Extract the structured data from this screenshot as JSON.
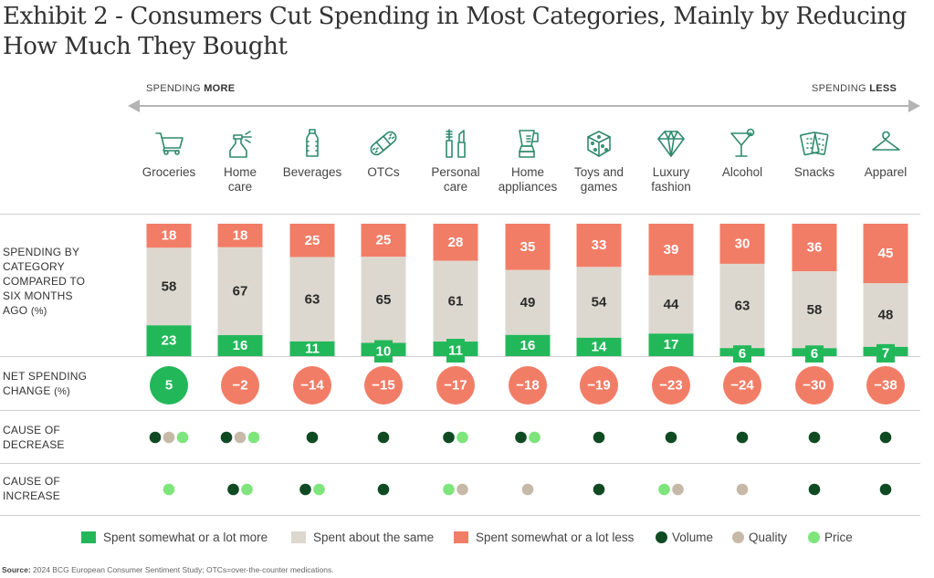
{
  "title": "Exhibit 2 - Consumers Cut Spending in Most Categories, Mainly by Reducing How Much They Bought",
  "direction": {
    "left_prefix": "SPENDING ",
    "left_bold": "MORE",
    "right_prefix": "SPENDING ",
    "right_bold": "LESS"
  },
  "row_labels": {
    "spending": [
      "SPENDING BY",
      "CATEGORY",
      "COMPARED TO",
      "SIX MONTHS",
      "AGO"
    ],
    "spending_unit": "(%)",
    "net": [
      "NET SPENDING",
      "CHANGE"
    ],
    "net_unit": "(%)",
    "decrease": [
      "CAUSE OF",
      "DECREASE"
    ],
    "increase": [
      "CAUSE OF",
      "INCREASE"
    ]
  },
  "colors": {
    "more": "#22b85a",
    "same": "#ddd8cf",
    "less": "#f27d67",
    "volume": "#0f4a22",
    "quality": "#c7b9a8",
    "price": "#7de57b",
    "icon": "#2f8a6a"
  },
  "categories": [
    {
      "label": [
        "Groceries"
      ],
      "icon": "shopping-cart-icon"
    },
    {
      "label": [
        "Home",
        "care"
      ],
      "icon": "spray-bottle-icon"
    },
    {
      "label": [
        "Beverages"
      ],
      "icon": "water-bottle-icon"
    },
    {
      "label": [
        "OTCs"
      ],
      "icon": "bandage-icon"
    },
    {
      "label": [
        "Personal",
        "care"
      ],
      "icon": "mascara-lipstick-icon"
    },
    {
      "label": [
        "Home",
        "appliances"
      ],
      "icon": "blender-icon"
    },
    {
      "label": [
        "Toys and",
        "games"
      ],
      "icon": "dice-icon"
    },
    {
      "label": [
        "Luxury",
        "fashion"
      ],
      "icon": "diamond-icon"
    },
    {
      "label": [
        "Alcohol"
      ],
      "icon": "cocktail-glass-icon"
    },
    {
      "label": [
        "Snacks"
      ],
      "icon": "crackers-icon"
    },
    {
      "label": [
        "Apparel"
      ],
      "icon": "hanger-icon"
    }
  ],
  "legend": {
    "more": "Spent somewhat or a lot more",
    "same": "Spent about the same",
    "less": "Spent somewhat or a lot less",
    "volume": "Volume",
    "quality": "Quality",
    "price": "Price"
  },
  "source_bold": "Source:",
  "source_text": " 2024 BCG European Consumer Sentiment Study; OTCs=over-the-counter medications.",
  "chart_data": {
    "type": "bar",
    "stacked": true,
    "title": "Exhibit 2 - Consumers Cut Spending in Most Categories, Mainly by Reducing How Much They Bought",
    "xlabel": "",
    "ylabel": "Spending by category compared to six months ago (%)",
    "ylim": [
      0,
      100
    ],
    "categories": [
      "Groceries",
      "Home care",
      "Beverages",
      "OTCs",
      "Personal care",
      "Home appliances",
      "Toys and games",
      "Luxury fashion",
      "Alcohol",
      "Snacks",
      "Apparel"
    ],
    "series": [
      {
        "name": "Spent somewhat or a lot more",
        "values": [
          23,
          16,
          11,
          10,
          11,
          16,
          14,
          17,
          6,
          6,
          7
        ]
      },
      {
        "name": "Spent about the same",
        "values": [
          58,
          67,
          63,
          65,
          61,
          49,
          54,
          44,
          63,
          58,
          48
        ]
      },
      {
        "name": "Spent somewhat or a lot less",
        "values": [
          18,
          18,
          25,
          25,
          28,
          35,
          33,
          39,
          30,
          36,
          45
        ]
      }
    ],
    "net_spending_change": [
      5,
      -2,
      -14,
      -15,
      -17,
      -18,
      -19,
      -23,
      -24,
      -30,
      -38
    ],
    "cause_of_decrease": [
      [
        "Volume",
        "Quality",
        "Price"
      ],
      [
        "Volume",
        "Quality",
        "Price"
      ],
      [
        "Volume"
      ],
      [
        "Volume"
      ],
      [
        "Volume",
        "Price"
      ],
      [
        "Volume",
        "Price"
      ],
      [
        "Volume"
      ],
      [
        "Volume"
      ],
      [
        "Volume"
      ],
      [
        "Volume"
      ],
      [
        "Volume"
      ]
    ],
    "cause_of_increase": [
      [
        "Price"
      ],
      [
        "Volume",
        "Price"
      ],
      [
        "Volume",
        "Price"
      ],
      [
        "Volume"
      ],
      [
        "Price",
        "Quality"
      ],
      [
        "Quality"
      ],
      [
        "Volume"
      ],
      [
        "Price",
        "Quality"
      ],
      [
        "Quality"
      ],
      [
        "Volume"
      ],
      [
        "Volume"
      ]
    ],
    "legend": [
      "Spent somewhat or a lot more",
      "Spent about the same",
      "Spent somewhat or a lot less",
      "Volume",
      "Quality",
      "Price"
    ],
    "legend_position": "bottom",
    "grid": false
  }
}
